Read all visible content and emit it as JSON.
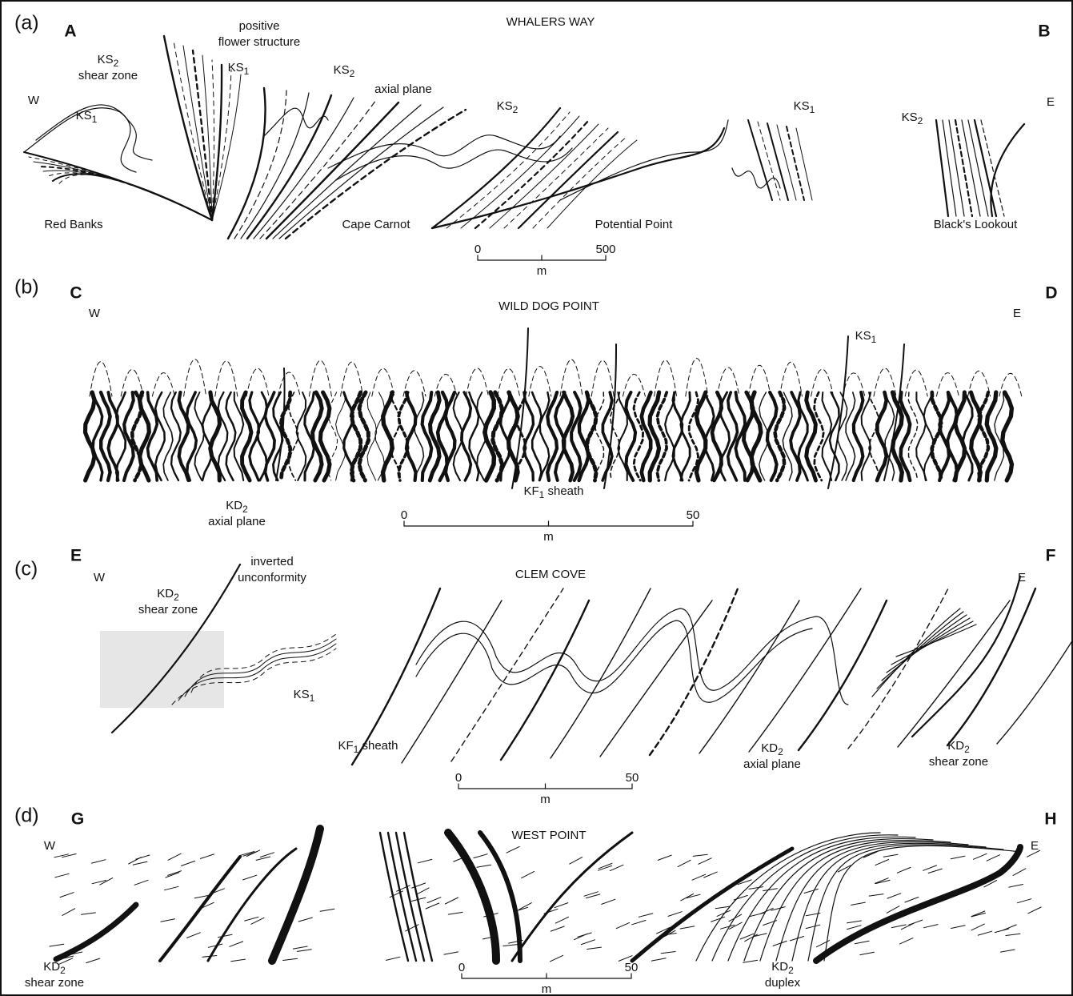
{
  "panels": [
    {
      "label": "(a)",
      "left": "A",
      "right": "B",
      "title": "WHALERS WAY",
      "west": "W",
      "east": "E",
      "annotations": [
        {
          "lines": [
            "positive",
            "flower structure"
          ]
        },
        {
          "prefix": "KS",
          "sub": "2",
          "lines": [
            "shear zone"
          ]
        },
        {
          "prefix": "KS",
          "sub": "1"
        },
        {
          "prefix": "KS",
          "sub": "2"
        },
        {
          "lines": [
            "axial plane"
          ]
        },
        {
          "prefix": "KS",
          "sub": "1"
        },
        {
          "prefix": "KS",
          "sub": "2"
        },
        {
          "prefix": "KS",
          "sub": "1"
        },
        {
          "prefix": "KS",
          "sub": "2"
        },
        {
          "lines": [
            "Red Banks"
          ]
        },
        {
          "lines": [
            "Cape Carnot"
          ]
        },
        {
          "lines": [
            "Potential Point"
          ]
        },
        {
          "lines": [
            "Black's Lookout"
          ]
        }
      ],
      "scale": {
        "start": 0,
        "end": 500,
        "unit": "m"
      }
    },
    {
      "label": "(b)",
      "left": "C",
      "right": "D",
      "title": "WILD DOG POINT",
      "west": "W",
      "east": "E",
      "annotations": [
        {
          "prefix": "KS",
          "sub": "1"
        },
        {
          "prefix": "KD",
          "sub": "2",
          "lines": [
            "axial plane"
          ]
        },
        {
          "prefix": "KF",
          "sub": "1",
          "suffix": " sheath"
        }
      ],
      "scale": {
        "start": 0,
        "end": 50,
        "unit": "m"
      }
    },
    {
      "label": "(c)",
      "left": "E",
      "right": "F",
      "title": "CLEM COVE",
      "west": "W",
      "east": "E",
      "annotations": [
        {
          "lines": [
            "inverted",
            "unconformity"
          ]
        },
        {
          "prefix": "KD",
          "sub": "2",
          "lines": [
            "shear zone"
          ]
        },
        {
          "prefix": "KS",
          "sub": "1"
        },
        {
          "prefix": "KF",
          "sub": "1",
          "suffix": " sheath"
        },
        {
          "prefix": "KD",
          "sub": "2",
          "lines": [
            "axial plane"
          ]
        },
        {
          "prefix": "KD",
          "sub": "2",
          "lines": [
            "shear zone"
          ]
        }
      ],
      "scale": {
        "start": 0,
        "end": 50,
        "unit": "m"
      }
    },
    {
      "label": "(d)",
      "left": "G",
      "right": "H",
      "title": "WEST POINT",
      "west": "W",
      "east": "E",
      "annotations": [
        {
          "prefix": "KD",
          "sub": "2",
          "lines": [
            "shear zone"
          ]
        },
        {
          "prefix": "KD",
          "sub": "2",
          "lines": [
            "duplex"
          ]
        }
      ],
      "scale": {
        "start": 0,
        "end": 50,
        "unit": "m"
      }
    }
  ]
}
